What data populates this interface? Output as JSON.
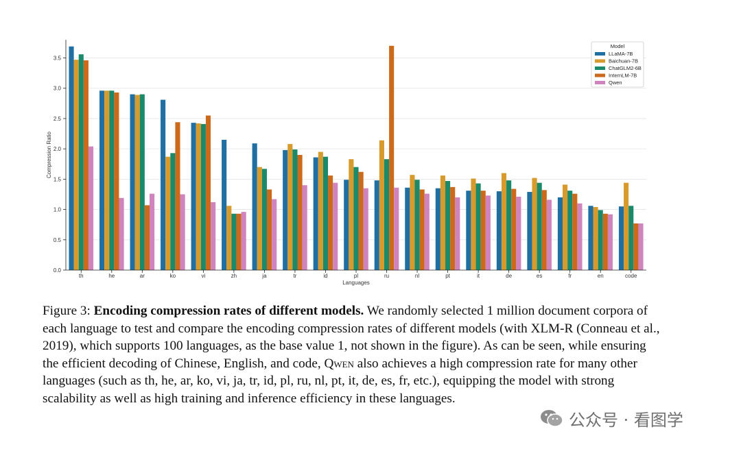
{
  "chart_data": {
    "type": "bar",
    "title": "",
    "xlabel": "Languages",
    "ylabel": "Compression Ratio",
    "ylim": [
      0,
      3.8
    ],
    "yticks": [
      "0.0",
      "0.5",
      "1.0",
      "1.5",
      "2.0",
      "2.5",
      "3.0",
      "3.5"
    ],
    "grid": true,
    "legend_title": "Model",
    "legend_position": "top-right",
    "categories": [
      "th",
      "he",
      "ar",
      "ko",
      "vi",
      "zh",
      "ja",
      "tr",
      "id",
      "pl",
      "ru",
      "nl",
      "pt",
      "it",
      "de",
      "es",
      "fr",
      "en",
      "code"
    ],
    "series": [
      {
        "name": "LLaMA-7B",
        "color": "#1f6fa3",
        "values": [
          3.69,
          2.96,
          2.9,
          2.81,
          2.43,
          2.15,
          2.09,
          1.98,
          1.86,
          1.49,
          1.48,
          1.36,
          1.35,
          1.31,
          1.3,
          1.29,
          1.2,
          1.06,
          1.05
        ]
      },
      {
        "name": "Baichuan-7B",
        "color": "#d69b2c",
        "values": [
          3.47,
          2.96,
          2.89,
          1.87,
          2.42,
          1.06,
          1.7,
          2.08,
          1.95,
          1.83,
          2.14,
          1.57,
          1.56,
          1.51,
          1.6,
          1.52,
          1.41,
          1.04,
          1.44
        ]
      },
      {
        "name": "ChatGLM2-6B",
        "color": "#1b8a6b",
        "values": [
          3.56,
          2.96,
          2.9,
          1.93,
          2.41,
          0.93,
          1.67,
          1.99,
          1.87,
          1.7,
          1.83,
          1.49,
          1.47,
          1.43,
          1.48,
          1.44,
          1.31,
          0.99,
          1.06
        ]
      },
      {
        "name": "InternLM-7B",
        "color": "#cc6a1c",
        "values": [
          3.46,
          2.93,
          1.07,
          2.44,
          2.55,
          0.93,
          1.33,
          1.9,
          1.56,
          1.62,
          3.7,
          1.33,
          1.37,
          1.31,
          1.34,
          1.32,
          1.26,
          0.93,
          0.77
        ]
      },
      {
        "name": "Qwen",
        "color": "#cf84bd",
        "values": [
          2.04,
          1.19,
          1.26,
          1.25,
          1.12,
          0.96,
          1.17,
          1.4,
          1.44,
          1.35,
          1.36,
          1.26,
          1.2,
          1.23,
          1.21,
          1.16,
          1.1,
          0.92,
          0.77
        ]
      }
    ]
  },
  "caption": {
    "prefix": "Figure 3: ",
    "bold": "Encoding compression rates of different models.",
    "part1": " We randomly selected 1 million document corpora of each language to test and compare the encoding compression rates of different models (with XLM-R (Conneau et al., 2019), which supports 100 languages, as the base value 1, not shown in the figure). As can be seen, while ensuring the efficient decoding of Chinese, English, and code, ",
    "smallcaps": "Qwen",
    "part2": " also achieves a high compression rate for many other languages (such as th, he, ar, ko, vi, ja, tr, id, pl, ru, nl, pt, it, de, es, fr, etc.), equipping the model with strong scalability as well as high training and inference efficiency in these languages."
  },
  "watermark": {
    "icon": "wechat-icon",
    "text": "公众号 · 看图学"
  }
}
